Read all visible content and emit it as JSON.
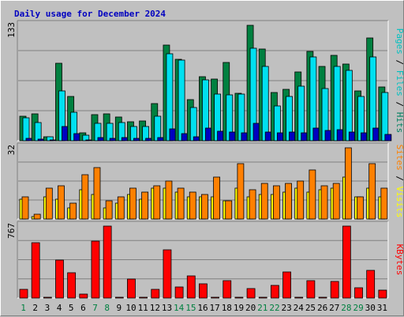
{
  "chart_data": {
    "type": "bar",
    "title": "Daily usage for December 2024",
    "categories": [
      "1",
      "2",
      "3",
      "4",
      "5",
      "6",
      "7",
      "8",
      "9",
      "10",
      "11",
      "12",
      "13",
      "14",
      "15",
      "16",
      "17",
      "18",
      "19",
      "20",
      "21",
      "22",
      "23",
      "24",
      "25",
      "26",
      "27",
      "28",
      "29",
      "30",
      "31"
    ],
    "weekend_days": [
      1,
      7,
      8,
      14,
      15,
      21,
      22,
      28,
      29
    ],
    "panels": [
      {
        "ymax_label": "133",
        "ymax": 133,
        "axis_label": [
          "Pages",
          "Files",
          "Hits"
        ],
        "axis_label_colors": [
          "#00c0c0",
          "#00c0c0",
          "#008060"
        ],
        "series": [
          {
            "name": "Hits",
            "color": "#008040",
            "values": [
              28,
              31,
              5,
              89,
              51,
              9,
              30,
              31,
              27,
              22,
              23,
              43,
              110,
              94,
              47,
              74,
              71,
              90,
              55,
              133,
              106,
              56,
              59,
              79,
              103,
              86,
              98,
              88,
              57,
              118,
              62
            ]
          },
          {
            "name": "Files",
            "color": "#00e0f0",
            "values": [
              26,
              21,
              5,
              57,
              33,
              6,
              20,
              20,
              21,
              16,
              16,
              28,
              100,
              93,
              38,
              70,
              54,
              53,
              54,
              107,
              86,
              40,
              51,
              63,
              97,
              60,
              86,
              81,
              51,
              97,
              56
            ]
          },
          {
            "name": "Pages",
            "color": "#0000c0",
            "values": [
              3,
              2,
              1,
              16,
              8,
              1,
              4,
              3,
              4,
              3,
              3,
              4,
              14,
              8,
              5,
              15,
              11,
              10,
              9,
              20,
              10,
              9,
              10,
              9,
              15,
              12,
              13,
              10,
              9,
              15,
              7
            ]
          }
        ]
      },
      {
        "ymax_label": "32",
        "ymax": 32,
        "axis_label": [
          "Sites",
          "Visits"
        ],
        "axis_label_colors": [
          "#ff8000",
          "#ffff00"
        ],
        "series": [
          {
            "name": "Visits",
            "color": "#ffff00",
            "values": [
              9,
              1,
              10,
              9,
              5,
              13,
              11,
              5,
              7,
              11,
              9,
              14,
              14,
              12,
              10,
              10,
              10,
              8,
              14,
              10,
              11,
              11,
              12,
              14,
              12,
              13,
              14,
              19,
              10,
              14,
              10
            ]
          },
          {
            "name": "Sites",
            "color": "#ff8000",
            "values": [
              10,
              2,
              14,
              15,
              7,
              20,
              23,
              8,
              10,
              14,
              12,
              15,
              17,
              14,
              12,
              11,
              19,
              8,
              25,
              13,
              16,
              15,
              16,
              17,
              22,
              15,
              16,
              32,
              10,
              25,
              14
            ]
          }
        ]
      },
      {
        "ymax_label": "767",
        "ymax": 767,
        "axis_label": [
          "KBytes"
        ],
        "axis_label_colors": [
          "#ff0000"
        ],
        "series": [
          {
            "name": "KBytes",
            "color": "#ff0000",
            "values": [
              93,
              587,
              10,
              406,
              268,
              40,
              608,
              767,
              10,
              206,
              10,
              90,
              512,
              122,
              232,
              151,
              10,
              183,
              10,
              97,
              10,
              134,
              274,
              10,
              183,
              10,
              181,
              767,
              112,
              293,
              83
            ]
          }
        ]
      }
    ]
  }
}
